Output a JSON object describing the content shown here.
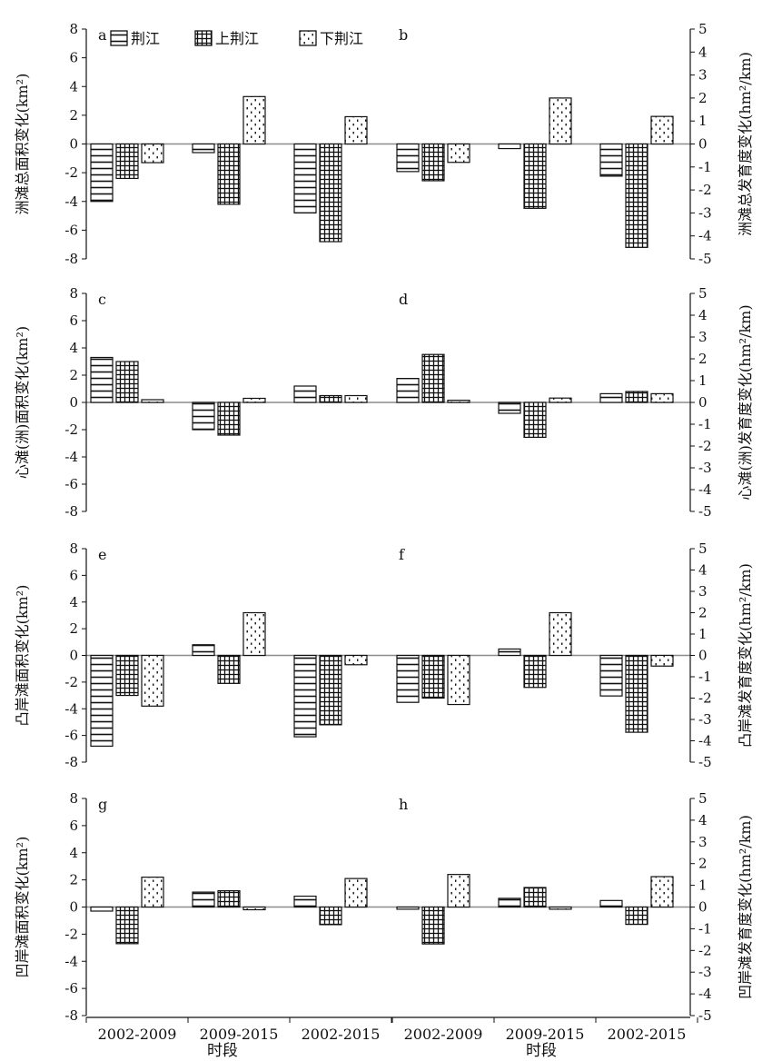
{
  "legend": [
    {
      "label": "荆江",
      "pattern": "hstripe"
    },
    {
      "label": "上荆江",
      "pattern": "grid"
    },
    {
      "label": "下荆江",
      "pattern": "dots"
    }
  ],
  "xlabel": "时段",
  "colors": {
    "axis": "#111111",
    "zero_line": "#8c8c8c",
    "bar_fill": "#ffffff"
  },
  "chart_data": [
    {
      "type": "bar",
      "panel_label": "a",
      "ylabel": "洲滩总面积变化(km²)",
      "ylim": [
        -8,
        8
      ],
      "ticks": [
        8,
        6,
        4,
        2,
        0,
        -2,
        -4,
        -6,
        -8
      ],
      "categories": [
        "2002-2009",
        "2009-2015",
        "2002-2015"
      ],
      "series": [
        {
          "name": "荆江",
          "values": [
            -4.0,
            -0.6,
            -4.8
          ]
        },
        {
          "name": "上荆江",
          "values": [
            -2.4,
            -4.2,
            -6.8
          ]
        },
        {
          "name": "下荆江",
          "values": [
            -1.3,
            3.3,
            1.9
          ]
        }
      ]
    },
    {
      "type": "bar",
      "panel_label": "b",
      "ylabel": "洲滩总发育度变化(hm²/km)",
      "ylim": [
        -5,
        5
      ],
      "ticks": [
        5,
        4,
        3,
        2,
        1,
        0,
        -1,
        -2,
        -3,
        -4,
        -5
      ],
      "categories": [
        "2002-2009",
        "2009-2015",
        "2002-2015"
      ],
      "series": [
        {
          "name": "荆江",
          "values": [
            -1.2,
            -0.2,
            -1.4
          ]
        },
        {
          "name": "上荆江",
          "values": [
            -1.6,
            -2.8,
            -4.5
          ]
        },
        {
          "name": "下荆江",
          "values": [
            -0.8,
            2.0,
            1.2
          ]
        }
      ]
    },
    {
      "type": "bar",
      "panel_label": "c",
      "ylabel": "心滩(洲)面积变化(km²)",
      "ylim": [
        -8,
        8
      ],
      "ticks": [
        8,
        6,
        4,
        2,
        0,
        -2,
        -4,
        -6,
        -8
      ],
      "categories": [
        "2002-2009",
        "2009-2015",
        "2002-2015"
      ],
      "series": [
        {
          "name": "荆江",
          "values": [
            3.3,
            -2.0,
            1.2
          ]
        },
        {
          "name": "上荆江",
          "values": [
            3.0,
            -2.4,
            0.5
          ]
        },
        {
          "name": "下荆江",
          "values": [
            0.2,
            0.3,
            0.5
          ]
        }
      ]
    },
    {
      "type": "bar",
      "panel_label": "d",
      "ylabel": "心滩(洲)发育度变化(hm²/km)",
      "ylim": [
        -5,
        5
      ],
      "ticks": [
        5,
        4,
        3,
        2,
        1,
        0,
        -1,
        -2,
        -3,
        -4,
        -5
      ],
      "categories": [
        "2002-2009",
        "2009-2015",
        "2002-2015"
      ],
      "series": [
        {
          "name": "荆江",
          "values": [
            1.1,
            -0.5,
            0.4
          ]
        },
        {
          "name": "上荆江",
          "values": [
            2.2,
            -1.6,
            0.5
          ]
        },
        {
          "name": "下荆江",
          "values": [
            0.1,
            0.2,
            0.4
          ]
        }
      ]
    },
    {
      "type": "bar",
      "panel_label": "e",
      "ylabel": "凸岸滩面积变化(km²)",
      "ylim": [
        -8,
        8
      ],
      "ticks": [
        8,
        6,
        4,
        2,
        0,
        -2,
        -4,
        -6,
        -8
      ],
      "categories": [
        "2002-2009",
        "2009-2015",
        "2002-2015"
      ],
      "series": [
        {
          "name": "荆江",
          "values": [
            -6.8,
            0.8,
            -6.1
          ]
        },
        {
          "name": "上荆江",
          "values": [
            -3.0,
            -2.1,
            -5.2
          ]
        },
        {
          "name": "下荆江",
          "values": [
            -3.8,
            3.2,
            -0.7
          ]
        }
      ]
    },
    {
      "type": "bar",
      "panel_label": "f",
      "ylabel": "凸岸滩发育度变化(hm²/km)",
      "ylim": [
        -5,
        5
      ],
      "ticks": [
        5,
        4,
        3,
        2,
        1,
        0,
        -1,
        -2,
        -3,
        -4,
        -5
      ],
      "categories": [
        "2002-2009",
        "2009-2015",
        "2002-2015"
      ],
      "series": [
        {
          "name": "荆江",
          "values": [
            -2.2,
            0.3,
            -1.9
          ]
        },
        {
          "name": "上荆江",
          "values": [
            -2.0,
            -1.5,
            -3.6
          ]
        },
        {
          "name": "下荆江",
          "values": [
            -2.3,
            2.0,
            -0.5
          ]
        }
      ]
    },
    {
      "type": "bar",
      "panel_label": "g",
      "ylabel": "凹岸滩面积变化(km²)",
      "ylim": [
        -8,
        8
      ],
      "ticks": [
        8,
        6,
        4,
        2,
        0,
        -2,
        -4,
        -6,
        -8
      ],
      "categories": [
        "2002-2009",
        "2009-2015",
        "2002-2015"
      ],
      "series": [
        {
          "name": "荆江",
          "values": [
            -0.3,
            1.1,
            0.8
          ]
        },
        {
          "name": "上荆江",
          "values": [
            -2.7,
            1.2,
            -1.3
          ]
        },
        {
          "name": "下荆江",
          "values": [
            2.2,
            -0.2,
            2.1
          ]
        }
      ]
    },
    {
      "type": "bar",
      "panel_label": "h",
      "ylabel": "凹岸滩发育度变化(hm²/km)",
      "ylim": [
        -5,
        5
      ],
      "ticks": [
        5,
        4,
        3,
        2,
        1,
        0,
        -1,
        -2,
        -3,
        -4,
        -5
      ],
      "categories": [
        "2002-2009",
        "2009-2015",
        "2002-2015"
      ],
      "series": [
        {
          "name": "荆江",
          "values": [
            -0.1,
            0.4,
            0.3
          ]
        },
        {
          "name": "上荆江",
          "values": [
            -1.7,
            0.9,
            -0.8
          ]
        },
        {
          "name": "下荆江",
          "values": [
            1.5,
            -0.1,
            1.4
          ]
        }
      ]
    }
  ]
}
